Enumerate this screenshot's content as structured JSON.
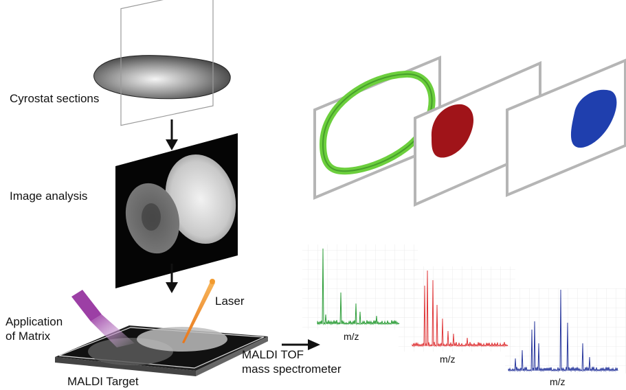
{
  "labels": {
    "cryostat": "Cyrostat sections",
    "image_analysis": "Image analysis",
    "laser": "Laser",
    "application_line1": "Application",
    "application_line2": "of Matrix",
    "maldi_target": "MALDI Target",
    "maldi_tof_line1": "MALDI TOF",
    "maldi_tof_line2": "mass spectrometer"
  },
  "spectra": [
    {
      "axis_label": "m/z",
      "color": "#2e9e3a"
    },
    {
      "axis_label": "m/z",
      "color": "#e0383a"
    },
    {
      "axis_label": "m/z",
      "color": "#2b3a9e"
    }
  ],
  "ion_images": [
    {
      "shape": "ring",
      "color": "#5cc23b"
    },
    {
      "shape": "blob",
      "color": "#a01419"
    },
    {
      "shape": "blob",
      "color": "#1f3fae"
    }
  ],
  "colors": {
    "arrow": "#111111",
    "panel_border": "#b7b7b7",
    "grid": "#e3e3e3",
    "laser": "#f29a2e",
    "matrix_spray": "#9c3fa5"
  }
}
